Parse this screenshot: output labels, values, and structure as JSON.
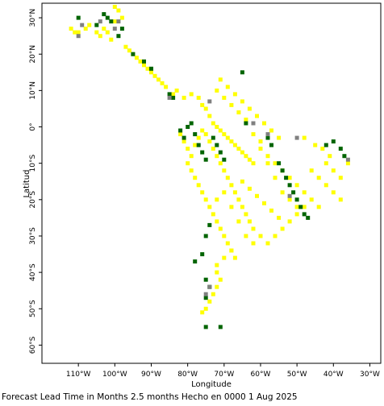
{
  "chart_data": {
    "type": "heatmap",
    "title": "",
    "xlabel": "Longitude",
    "ylabel": "Latitud",
    "xlim": [
      -120,
      -27
    ],
    "ylim": [
      -65,
      34
    ],
    "x_ticks": [
      {
        "value": -110,
        "label": "110°W"
      },
      {
        "value": -100,
        "label": "100°W"
      },
      {
        "value": -90,
        "label": "90°W"
      },
      {
        "value": -80,
        "label": "80°W"
      },
      {
        "value": -70,
        "label": "70°W"
      },
      {
        "value": -60,
        "label": "60°W"
      },
      {
        "value": -50,
        "label": "50°W"
      },
      {
        "value": -40,
        "label": "40°W"
      },
      {
        "value": -30,
        "label": "30°W"
      }
    ],
    "y_ticks": [
      {
        "value": 30,
        "label": "30°N"
      },
      {
        "value": 20,
        "label": "20°N"
      },
      {
        "value": 10,
        "label": "10°N"
      },
      {
        "value": 0,
        "label": "0°"
      },
      {
        "value": -10,
        "label": "10°S"
      },
      {
        "value": -20,
        "label": "20°S"
      },
      {
        "value": -30,
        "label": "30°S"
      },
      {
        "value": -40,
        "label": "40°S"
      },
      {
        "value": -50,
        "label": "50°S"
      },
      {
        "value": -60,
        "label": "60°S"
      }
    ],
    "colors": {
      "yellow": "#ffff00",
      "green": "#006400",
      "gray": "#808080"
    },
    "cell_size_deg": 0.5,
    "series": [
      {
        "color_key": "yellow",
        "cells": [
          [
            -112,
            27
          ],
          [
            -111,
            26
          ],
          [
            -110,
            26
          ],
          [
            -108,
            27
          ],
          [
            -107,
            28
          ],
          [
            -105,
            26
          ],
          [
            -104,
            25
          ],
          [
            -103,
            27
          ],
          [
            -102,
            26
          ],
          [
            -101,
            24
          ],
          [
            -100,
            33
          ],
          [
            -99,
            32
          ],
          [
            -98,
            30
          ],
          [
            -100,
            29
          ],
          [
            -97,
            22
          ],
          [
            -96,
            21
          ],
          [
            -95,
            20
          ],
          [
            -94,
            19
          ],
          [
            -93,
            18
          ],
          [
            -92,
            17
          ],
          [
            -91,
            16
          ],
          [
            -90,
            15
          ],
          [
            -89,
            14
          ],
          [
            -88,
            13
          ],
          [
            -87,
            12
          ],
          [
            -86,
            11
          ],
          [
            -84,
            9
          ],
          [
            -83,
            10
          ],
          [
            -81,
            8
          ],
          [
            -79,
            9
          ],
          [
            -77,
            8
          ],
          [
            -76,
            6
          ],
          [
            -75,
            5
          ],
          [
            -74,
            3
          ],
          [
            -73,
            1
          ],
          [
            -72,
            0
          ],
          [
            -71,
            -1
          ],
          [
            -70,
            -2
          ],
          [
            -69,
            -3
          ],
          [
            -68,
            -4
          ],
          [
            -67,
            -5
          ],
          [
            -66,
            -6
          ],
          [
            -65,
            -7
          ],
          [
            -64,
            -8
          ],
          [
            -63,
            -9
          ],
          [
            -62,
            -10
          ],
          [
            -75,
            -2
          ],
          [
            -74,
            -4
          ],
          [
            -73,
            -6
          ],
          [
            -72,
            -8
          ],
          [
            -71,
            -10
          ],
          [
            -70,
            -12
          ],
          [
            -69,
            -14
          ],
          [
            -68,
            -16
          ],
          [
            -67,
            -18
          ],
          [
            -66,
            -20
          ],
          [
            -65,
            -22
          ],
          [
            -64,
            -24
          ],
          [
            -63,
            -26
          ],
          [
            -62,
            -28
          ],
          [
            -60,
            -6
          ],
          [
            -58,
            -8
          ],
          [
            -56,
            -10
          ],
          [
            -54,
            -12
          ],
          [
            -52,
            -14
          ],
          [
            -50,
            -16
          ],
          [
            -48,
            -18
          ],
          [
            -46,
            -20
          ],
          [
            -44,
            -22
          ],
          [
            -42,
            -10
          ],
          [
            -40,
            -12
          ],
          [
            -38,
            -14
          ],
          [
            -45,
            -5
          ],
          [
            -48,
            -3
          ],
          [
            -55,
            -3
          ],
          [
            -57,
            -1
          ],
          [
            -59,
            1
          ],
          [
            -61,
            3
          ],
          [
            -63,
            5
          ],
          [
            -65,
            7
          ],
          [
            -67,
            9
          ],
          [
            -69,
            11
          ],
          [
            -71,
            13
          ],
          [
            -72,
            10
          ],
          [
            -70,
            8
          ],
          [
            -68,
            6
          ],
          [
            -66,
            4
          ],
          [
            -64,
            2
          ],
          [
            -80,
            -10
          ],
          [
            -79,
            -12
          ],
          [
            -78,
            -14
          ],
          [
            -77,
            -16
          ],
          [
            -76,
            -18
          ],
          [
            -75,
            -20
          ],
          [
            -74,
            -22
          ],
          [
            -73,
            -24
          ],
          [
            -72,
            -26
          ],
          [
            -71,
            -28
          ],
          [
            -70,
            -30
          ],
          [
            -69,
            -32
          ],
          [
            -68,
            -34
          ],
          [
            -67,
            -36
          ],
          [
            -72,
            -20
          ],
          [
            -70,
            -18
          ],
          [
            -68,
            -22
          ],
          [
            -66,
            -26
          ],
          [
            -64,
            -30
          ],
          [
            -62,
            -32
          ],
          [
            -60,
            -30
          ],
          [
            -58,
            -32
          ],
          [
            -56,
            -30
          ],
          [
            -54,
            -28
          ],
          [
            -52,
            -26
          ],
          [
            -50,
            -24
          ],
          [
            -48,
            -22
          ],
          [
            -72,
            -40
          ],
          [
            -71,
            -42
          ],
          [
            -72,
            -44
          ],
          [
            -73,
            -46
          ],
          [
            -74,
            -48
          ],
          [
            -75,
            -50
          ],
          [
            -76,
            -51
          ],
          [
            -72,
            -38
          ],
          [
            -70,
            -36
          ],
          [
            -68,
            -34
          ],
          [
            -82,
            -2
          ],
          [
            -81,
            -4
          ],
          [
            -80,
            -6
          ],
          [
            -79,
            -8
          ],
          [
            -78,
            -5
          ],
          [
            -77,
            -3
          ],
          [
            -76,
            -1
          ],
          [
            -62,
            -2
          ],
          [
            -60,
            -4
          ],
          [
            -58,
            -10
          ],
          [
            -56,
            -14
          ],
          [
            -54,
            -18
          ],
          [
            -52,
            -20
          ],
          [
            -50,
            -22
          ],
          [
            -46,
            -12
          ],
          [
            -44,
            -14
          ],
          [
            -42,
            -16
          ],
          [
            -40,
            -18
          ],
          [
            -38,
            -20
          ],
          [
            -36,
            -10
          ],
          [
            -41,
            -8
          ],
          [
            -43,
            -6
          ],
          [
            -65,
            -15
          ],
          [
            -63,
            -17
          ],
          [
            -61,
            -19
          ],
          [
            -59,
            -21
          ],
          [
            -57,
            -23
          ],
          [
            -55,
            -25
          ]
        ]
      },
      {
        "color_key": "green",
        "cells": [
          [
            -110,
            30
          ],
          [
            -105,
            28
          ],
          [
            -103,
            31
          ],
          [
            -102,
            30
          ],
          [
            -101,
            29
          ],
          [
            -98,
            27
          ],
          [
            -99,
            25
          ],
          [
            -95,
            20
          ],
          [
            -92,
            18
          ],
          [
            -90,
            16
          ],
          [
            -85,
            9
          ],
          [
            -84,
            8
          ],
          [
            -81,
            -3
          ],
          [
            -80,
            0
          ],
          [
            -79,
            1
          ],
          [
            -78,
            -2
          ],
          [
            -77,
            -5
          ],
          [
            -76,
            -7
          ],
          [
            -75,
            -9
          ],
          [
            -73,
            -3
          ],
          [
            -72,
            -5
          ],
          [
            -71,
            -7
          ],
          [
            -70,
            -9
          ],
          [
            -58,
            -3
          ],
          [
            -57,
            -5
          ],
          [
            -55,
            -10
          ],
          [
            -54,
            -12
          ],
          [
            -53,
            -14
          ],
          [
            -52,
            -16
          ],
          [
            -51,
            -18
          ],
          [
            -50,
            -20
          ],
          [
            -49,
            -22
          ],
          [
            -48,
            -24
          ],
          [
            -47,
            -25
          ],
          [
            -42,
            -5
          ],
          [
            -40,
            -4
          ],
          [
            -38,
            -6
          ],
          [
            -37,
            -8
          ],
          [
            -74,
            -27
          ],
          [
            -75,
            -30
          ],
          [
            -76,
            -35
          ],
          [
            -78,
            -37
          ],
          [
            -75,
            -42
          ],
          [
            -74,
            -44
          ],
          [
            -75,
            -47
          ],
          [
            -75,
            -55
          ],
          [
            -71,
            -55
          ],
          [
            -65,
            15
          ],
          [
            -82,
            -1
          ],
          [
            -64,
            1
          ]
        ]
      },
      {
        "color_key": "gray",
        "cells": [
          [
            -109,
            28
          ],
          [
            -104,
            29
          ],
          [
            -100,
            27
          ],
          [
            -99,
            29
          ],
          [
            -85,
            8
          ],
          [
            -74,
            7
          ],
          [
            -62,
            1
          ],
          [
            -58,
            -2
          ],
          [
            -50,
            -3
          ],
          [
            -36,
            -9
          ],
          [
            -52,
            -19
          ],
          [
            -74,
            -44
          ],
          [
            -75,
            -46
          ],
          [
            -110,
            25
          ]
        ]
      }
    ]
  },
  "footer": {
    "caption": "Forecast Lead Time in Months 2.5 months Hecho en 0000 1 Aug 2025"
  }
}
